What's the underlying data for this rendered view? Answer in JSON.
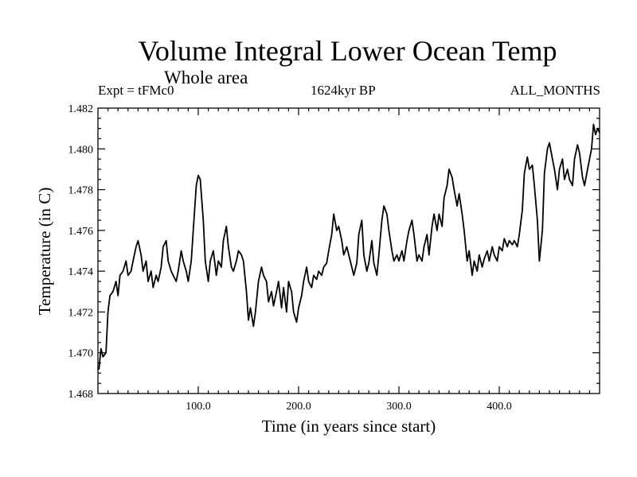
{
  "chart_data": {
    "type": "line",
    "title": "Volume Integral Lower Ocean Temp",
    "subtitle": "Whole area",
    "annotations": {
      "left": "Expt = tFMc0",
      "center": "1624kyr BP",
      "right": "ALL_MONTHS"
    },
    "xlabel": "Time (in years since start)",
    "ylabel": "Temperature (in C)",
    "xlim": [
      0,
      500
    ],
    "ylim": [
      1.468,
      1.482
    ],
    "xticks": [
      100,
      200,
      300,
      400
    ],
    "xtick_labels": [
      "100.0",
      "200.0",
      "300.0",
      "400.0"
    ],
    "yticks": [
      1.468,
      1.47,
      1.472,
      1.474,
      1.476,
      1.478,
      1.48,
      1.482
    ],
    "ytick_labels": [
      "1.468",
      "1.470",
      "1.472",
      "1.474",
      "1.476",
      "1.478",
      "1.480",
      "1.482"
    ],
    "series": [
      {
        "name": "Temperature",
        "color": "#000000",
        "x": [
          1,
          3,
          5,
          8,
          10,
          12,
          15,
          18,
          20,
          22,
          25,
          28,
          30,
          33,
          35,
          38,
          40,
          43,
          45,
          48,
          50,
          53,
          55,
          58,
          60,
          63,
          65,
          68,
          70,
          73,
          75,
          78,
          80,
          83,
          85,
          88,
          90,
          93,
          95,
          98,
          100,
          102,
          105,
          107,
          110,
          112,
          115,
          118,
          120,
          123,
          125,
          128,
          130,
          133,
          135,
          138,
          140,
          143,
          145,
          148,
          150,
          152,
          155,
          157,
          160,
          163,
          165,
          168,
          170,
          173,
          175,
          178,
          180,
          183,
          185,
          188,
          190,
          193,
          195,
          198,
          200,
          203,
          205,
          208,
          210,
          213,
          215,
          218,
          220,
          223,
          225,
          228,
          230,
          233,
          235,
          238,
          240,
          243,
          245,
          248,
          250,
          253,
          255,
          258,
          260,
          263,
          265,
          268,
          270,
          273,
          275,
          278,
          280,
          283,
          285,
          288,
          290,
          293,
          295,
          298,
          300,
          303,
          305,
          308,
          310,
          313,
          315,
          318,
          320,
          323,
          325,
          328,
          330,
          333,
          335,
          338,
          340,
          343,
          345,
          348,
          350,
          353,
          355,
          358,
          360,
          363,
          365,
          368,
          370,
          373,
          375,
          378,
          380,
          383,
          385,
          388,
          390,
          393,
          395,
          398,
          400,
          403,
          405,
          408,
          410,
          413,
          415,
          418,
          420,
          423,
          425,
          428,
          430,
          433,
          435,
          438,
          440,
          443,
          445,
          448,
          450,
          453,
          455,
          458,
          460,
          463,
          465,
          468,
          470,
          473,
          475,
          478,
          480,
          483,
          485,
          488,
          490,
          492,
          494,
          496,
          498,
          500
        ],
        "values": [
          1.4692,
          1.4702,
          1.4698,
          1.47,
          1.472,
          1.4728,
          1.473,
          1.4735,
          1.4728,
          1.4738,
          1.474,
          1.4745,
          1.4738,
          1.474,
          1.4745,
          1.4752,
          1.4755,
          1.4748,
          1.474,
          1.4745,
          1.4735,
          1.474,
          1.4732,
          1.4738,
          1.4735,
          1.4742,
          1.4752,
          1.4755,
          1.4745,
          1.474,
          1.4738,
          1.4735,
          1.474,
          1.475,
          1.4745,
          1.474,
          1.4735,
          1.4745,
          1.476,
          1.4782,
          1.4787,
          1.4785,
          1.4765,
          1.4745,
          1.4735,
          1.4745,
          1.475,
          1.4738,
          1.4745,
          1.4742,
          1.4755,
          1.4762,
          1.4752,
          1.4742,
          1.474,
          1.4745,
          1.475,
          1.4748,
          1.4745,
          1.473,
          1.4716,
          1.4722,
          1.4713,
          1.472,
          1.4735,
          1.4742,
          1.4738,
          1.4735,
          1.4725,
          1.473,
          1.4723,
          1.473,
          1.4735,
          1.4722,
          1.4732,
          1.472,
          1.4735,
          1.473,
          1.472,
          1.4715,
          1.4722,
          1.4728,
          1.4735,
          1.4742,
          1.4735,
          1.4732,
          1.4738,
          1.4736,
          1.474,
          1.4738,
          1.4742,
          1.4744,
          1.475,
          1.4758,
          1.4768,
          1.476,
          1.4762,
          1.4755,
          1.4748,
          1.4752,
          1.4748,
          1.4742,
          1.4738,
          1.4744,
          1.4758,
          1.4765,
          1.4748,
          1.474,
          1.4744,
          1.4755,
          1.4744,
          1.4738,
          1.4748,
          1.4765,
          1.4772,
          1.4768,
          1.476,
          1.475,
          1.4745,
          1.4748,
          1.4745,
          1.475,
          1.4745,
          1.4755,
          1.476,
          1.4765,
          1.4758,
          1.4745,
          1.4748,
          1.4745,
          1.4752,
          1.4758,
          1.4748,
          1.4762,
          1.4768,
          1.476,
          1.4768,
          1.4762,
          1.4776,
          1.4782,
          1.479,
          1.4786,
          1.478,
          1.4772,
          1.4778,
          1.4768,
          1.476,
          1.4745,
          1.475,
          1.4738,
          1.4745,
          1.474,
          1.4748,
          1.4742,
          1.4746,
          1.475,
          1.4745,
          1.4752,
          1.4748,
          1.4745,
          1.4752,
          1.475,
          1.4756,
          1.4752,
          1.4755,
          1.4753,
          1.4755,
          1.4752,
          1.4758,
          1.477,
          1.4788,
          1.4796,
          1.479,
          1.4792,
          1.4782,
          1.4765,
          1.4745,
          1.476,
          1.4788,
          1.48,
          1.4803,
          1.4795,
          1.479,
          1.478,
          1.479,
          1.4795,
          1.4785,
          1.479,
          1.4785,
          1.4782,
          1.4795,
          1.4802,
          1.4798,
          1.4786,
          1.4782,
          1.479,
          1.4795,
          1.48,
          1.4812,
          1.4807,
          1.481,
          1.4808
        ]
      }
    ]
  }
}
